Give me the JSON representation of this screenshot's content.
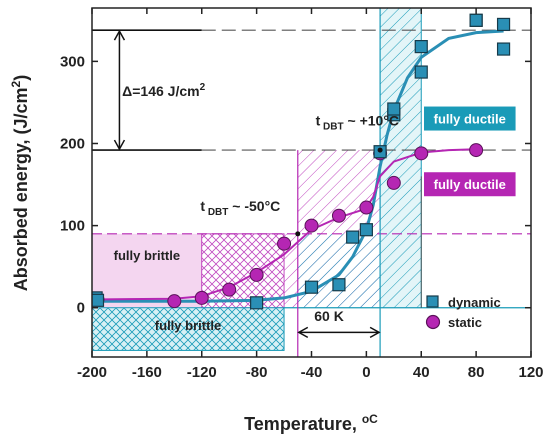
{
  "chart_data": {
    "type": "scatter",
    "xlabel": "Temperature, ",
    "xlabel_unit": "oC",
    "ylabel": "Absorbed energy, (J/cm",
    "ylabel_sup": "2",
    "ylabel_close": ")",
    "xlim": [
      -200,
      120
    ],
    "ylim": [
      -60,
      365
    ],
    "xticks": [
      -200,
      -160,
      -120,
      -80,
      -40,
      0,
      40,
      80,
      120
    ],
    "yticks": [
      0,
      100,
      200,
      300
    ],
    "grid": false,
    "legend_position": "bottom-right",
    "colors": {
      "dynamic": "#2a8fb5",
      "static": "#b526b3",
      "dynamic_box": "#1a9bb8",
      "static_box": "#b526b3"
    },
    "series": [
      {
        "name": "dynamic",
        "marker": "square",
        "points": [
          [
            -197,
            12
          ],
          [
            -196,
            9
          ],
          [
            -80,
            6
          ],
          [
            -40,
            25
          ],
          [
            -20,
            28
          ],
          [
            -10,
            86
          ],
          [
            0,
            95
          ],
          [
            10,
            190
          ],
          [
            20,
            235
          ],
          [
            20,
            242
          ],
          [
            40,
            287
          ],
          [
            40,
            318
          ],
          [
            80,
            350
          ],
          [
            80,
            350
          ],
          [
            100,
            345
          ],
          [
            100,
            315
          ]
        ],
        "fit_curve": [
          [
            -200,
            8
          ],
          [
            -120,
            8
          ],
          [
            -80,
            9
          ],
          [
            -60,
            12
          ],
          [
            -40,
            20
          ],
          [
            -20,
            40
          ],
          [
            -10,
            62
          ],
          [
            0,
            95
          ],
          [
            5,
            125
          ],
          [
            10,
            172
          ],
          [
            15,
            210
          ],
          [
            20,
            240
          ],
          [
            30,
            280
          ],
          [
            40,
            305
          ],
          [
            60,
            328
          ],
          [
            80,
            335
          ],
          [
            100,
            337
          ]
        ]
      },
      {
        "name": "static",
        "marker": "circle",
        "points": [
          [
            -196,
            10
          ],
          [
            -140,
            8
          ],
          [
            -120,
            12
          ],
          [
            -100,
            22
          ],
          [
            -80,
            40
          ],
          [
            -60,
            78
          ],
          [
            -40,
            100
          ],
          [
            -20,
            112
          ],
          [
            0,
            122
          ],
          [
            10,
            188
          ],
          [
            20,
            152
          ],
          [
            40,
            188
          ],
          [
            80,
            192
          ]
        ],
        "fit_curve": [
          [
            -200,
            10
          ],
          [
            -140,
            11
          ],
          [
            -120,
            14
          ],
          [
            -100,
            25
          ],
          [
            -80,
            43
          ],
          [
            -60,
            65
          ],
          [
            -50,
            80
          ],
          [
            -40,
            95
          ],
          [
            -20,
            110
          ],
          [
            -5,
            118
          ],
          [
            0,
            122
          ],
          [
            5,
            135
          ],
          [
            10,
            160
          ],
          [
            20,
            178
          ],
          [
            40,
            189
          ],
          [
            60,
            192
          ],
          [
            80,
            193
          ]
        ]
      }
    ],
    "annotations": {
      "delta_label": "Δ=146 J/cm",
      "delta_sup": "2",
      "tdbt_prefix": "t",
      "tdbt_sub": "DBT",
      "tdbt_dynamic": " ~ +10°C",
      "tdbt_static": " ~ -50°C",
      "shift_label": "60 K",
      "fully_ductile_dynamic": "fully ductile",
      "fully_ductile_static": "fully ductile",
      "fully_brittle_static": "fully brittle",
      "fully_brittle_dynamic": "fully brittle"
    },
    "reference_levels": {
      "upper_shelf_dynamic": 338,
      "upper_shelf_static": 192,
      "static_tdbt_level": 90,
      "dynamic_lower_level": 0,
      "tdbt_dynamic": 10,
      "tdbt_static": -50
    }
  }
}
